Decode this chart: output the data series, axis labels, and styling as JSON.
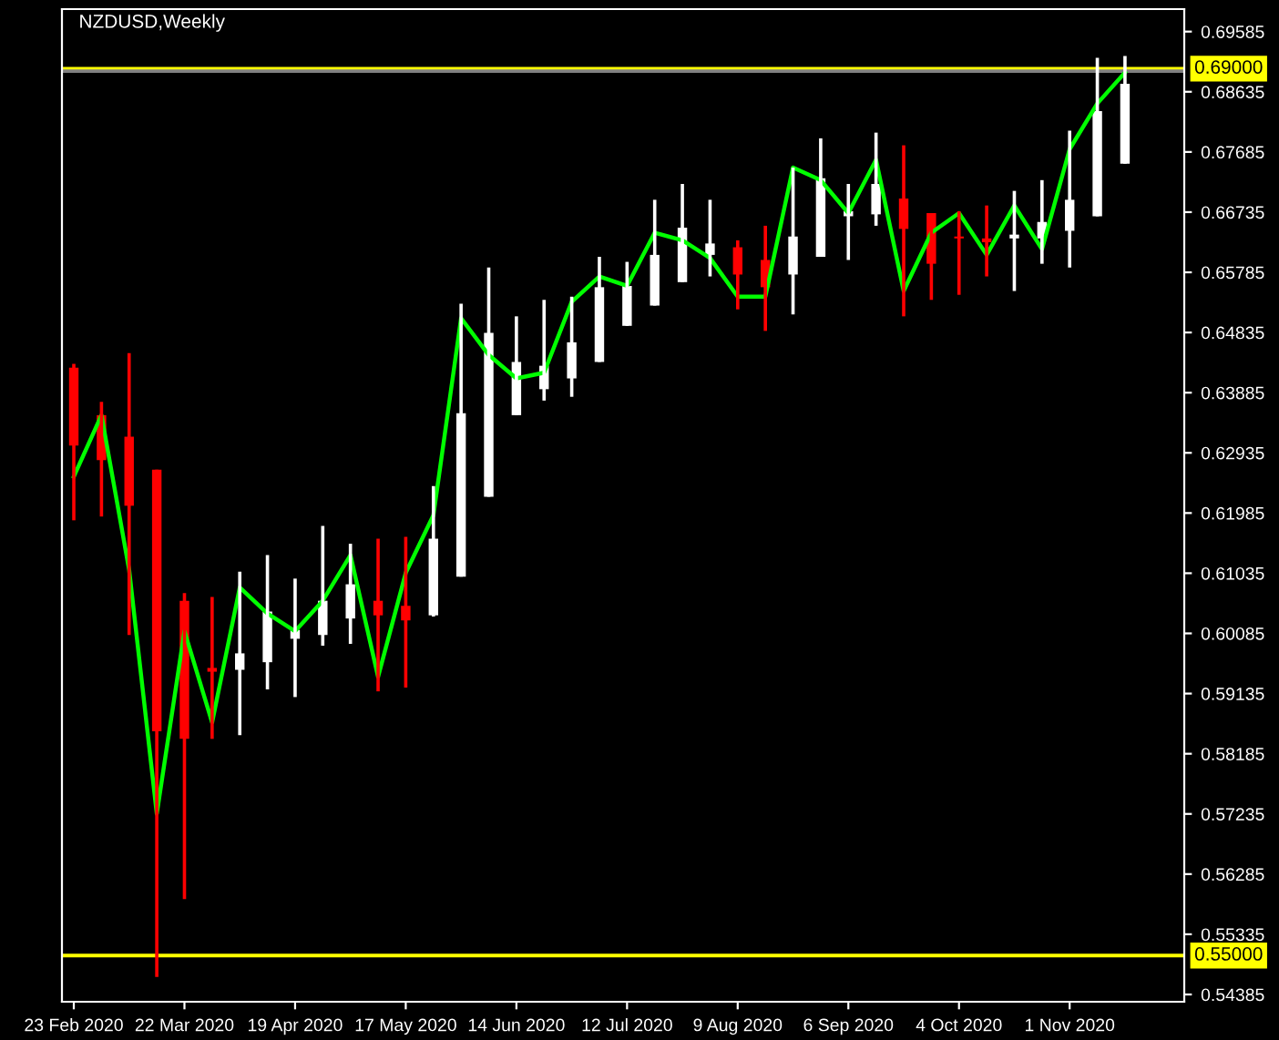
{
  "chart_data": {
    "type": "candlestick",
    "title": "NZDUSD,Weekly",
    "x": [
      "2020-02-23",
      "2020-03-01",
      "2020-03-08",
      "2020-03-15",
      "2020-03-22",
      "2020-03-29",
      "2020-04-05",
      "2020-04-12",
      "2020-04-19",
      "2020-04-26",
      "2020-05-03",
      "2020-05-10",
      "2020-05-17",
      "2020-05-24",
      "2020-05-31",
      "2020-06-07",
      "2020-06-14",
      "2020-06-21",
      "2020-06-28",
      "2020-07-05",
      "2020-07-12",
      "2020-07-19",
      "2020-07-26",
      "2020-08-02",
      "2020-08-09",
      "2020-08-16",
      "2020-08-23",
      "2020-08-30",
      "2020-09-06",
      "2020-09-13",
      "2020-09-20",
      "2020-09-27",
      "2020-10-04",
      "2020-10-11",
      "2020-10-18",
      "2020-10-25",
      "2020-11-01",
      "2020-11-08",
      "2020-11-15"
    ],
    "series": [
      {
        "colors": [
          "#ff0000",
          "#ff0000",
          "#ff0000",
          "#ff0000",
          "#ff0000",
          "#ff0000",
          "#ffffff",
          "#ffffff",
          "#ffffff",
          "#ffffff",
          "#ffffff",
          "#ff0000",
          "#ff0000",
          "#ffffff",
          "#ffffff",
          "#ffffff",
          "#ffffff",
          "#ffffff",
          "#ffffff",
          "#ffffff",
          "#ffffff",
          "#ffffff",
          "#ffffff",
          "#ffffff",
          "#ff0000",
          "#ff0000",
          "#ffffff",
          "#ffffff",
          "#ffffff",
          "#ffffff",
          "#ff0000",
          "#ff0000",
          "#ff0000",
          "#ff0000",
          "#ffffff",
          "#ffffff",
          "#ffffff",
          "#ffffff",
          "#ffffff"
        ],
        "ohlc": [
          [
            0.6428,
            0.6434,
            0.6187,
            0.6305
          ],
          [
            0.6353,
            0.6374,
            0.6193,
            0.6282
          ],
          [
            0.6319,
            0.6451,
            0.6006,
            0.621
          ],
          [
            0.6267,
            0.6267,
            0.5466,
            0.5854
          ],
          [
            0.606,
            0.6072,
            0.5589,
            0.5842
          ],
          [
            0.5954,
            0.6066,
            0.5842,
            0.5948
          ],
          [
            0.5951,
            0.6106,
            0.5848,
            0.5977
          ],
          [
            0.5963,
            0.6132,
            0.592,
            0.6043
          ],
          [
            0.6,
            0.6095,
            0.5908,
            0.6014
          ],
          [
            0.6006,
            0.6178,
            0.5989,
            0.606
          ],
          [
            0.6032,
            0.615,
            0.5992,
            0.6086
          ],
          [
            0.606,
            0.6158,
            0.5917,
            0.6037
          ],
          [
            0.6052,
            0.6161,
            0.5923,
            0.6029
          ],
          [
            0.6037,
            0.6241,
            0.6035,
            0.6158
          ],
          [
            0.6098,
            0.6529,
            0.6098,
            0.6356
          ],
          [
            0.6224,
            0.6586,
            0.6224,
            0.6483
          ],
          [
            0.6353,
            0.6509,
            0.6353,
            0.6437
          ],
          [
            0.6394,
            0.6535,
            0.6376,
            0.6431
          ],
          [
            0.6411,
            0.654,
            0.6382,
            0.6468
          ],
          [
            0.6437,
            0.6603,
            0.6437,
            0.6555
          ],
          [
            0.6494,
            0.6595,
            0.6494,
            0.6557
          ],
          [
            0.6526,
            0.6693,
            0.6526,
            0.6606
          ],
          [
            0.6563,
            0.6718,
            0.6563,
            0.6649
          ],
          [
            0.6606,
            0.6693,
            0.6572,
            0.6624
          ],
          [
            0.6618,
            0.6629,
            0.652,
            0.6575
          ],
          [
            0.6598,
            0.6652,
            0.6486,
            0.6555
          ],
          [
            0.6575,
            0.6744,
            0.6512,
            0.6635
          ],
          [
            0.6603,
            0.679,
            0.6603,
            0.6727
          ],
          [
            0.6667,
            0.6718,
            0.6598,
            0.6675
          ],
          [
            0.667,
            0.6799,
            0.6652,
            0.6718
          ],
          [
            0.6695,
            0.6779,
            0.6509,
            0.6647
          ],
          [
            0.6672,
            0.6672,
            0.6535,
            0.6592
          ],
          [
            0.6635,
            0.6675,
            0.6543,
            0.6632
          ],
          [
            0.6632,
            0.6684,
            0.6572,
            0.6626
          ],
          [
            0.6632,
            0.6707,
            0.6549,
            0.6638
          ],
          [
            0.6632,
            0.6724,
            0.6592,
            0.6658
          ],
          [
            0.6644,
            0.6802,
            0.6586,
            0.6693
          ],
          [
            0.6667,
            0.6917,
            0.6667,
            0.6833
          ],
          [
            0.675,
            0.692,
            0.675,
            0.6876
          ]
        ]
      },
      {
        "type": "line",
        "color": "#00ff00",
        "values": [
          0.6256,
          0.6353,
          0.6109,
          0.5724,
          0.6012,
          0.5868,
          0.6081,
          0.604,
          0.6012,
          0.606,
          0.6132,
          0.594,
          0.6104,
          0.6195,
          0.6506,
          0.6448,
          0.6411,
          0.642,
          0.6532,
          0.6572,
          0.6557,
          0.6641,
          0.6629,
          0.6601,
          0.654,
          0.654,
          0.6744,
          0.6724,
          0.6672,
          0.6756,
          0.6549,
          0.6641,
          0.6672,
          0.6606,
          0.6684,
          0.6615,
          0.6773,
          0.6845,
          0.6894
        ]
      }
    ],
    "xlim": [
      "2020-02-20",
      "2020-11-30"
    ],
    "xticks": [
      {
        "value": "2020-02-23",
        "label": "23 Feb 2020"
      },
      {
        "value": "2020-03-22",
        "label": "22 Mar 2020"
      },
      {
        "value": "2020-04-19",
        "label": "19 Apr 2020"
      },
      {
        "value": "2020-05-17",
        "label": "17 May 2020"
      },
      {
        "value": "2020-06-14",
        "label": "14 Jun 2020"
      },
      {
        "value": "2020-07-12",
        "label": "12 Jul 2020"
      },
      {
        "value": "2020-08-09",
        "label": "9 Aug 2020"
      },
      {
        "value": "2020-09-06",
        "label": "6 Sep 2020"
      },
      {
        "value": "2020-10-04",
        "label": "4 Oct 2020"
      },
      {
        "value": "2020-11-01",
        "label": "1 Nov 2020"
      }
    ],
    "ylim": [
      0.5427,
      0.6994
    ],
    "yticks": [
      0.69585,
      0.68635,
      0.67685,
      0.66735,
      0.65785,
      0.64835,
      0.63885,
      0.62935,
      0.61985,
      0.61035,
      0.60085,
      0.59135,
      0.58185,
      0.57235,
      0.56285,
      0.55335,
      0.54385
    ],
    "ref_lines": [
      {
        "axis": "y",
        "value": 0.69,
        "label": "0.69000",
        "color": "#ffff00"
      },
      {
        "axis": "y",
        "value": 0.6896,
        "color": "#808080"
      },
      {
        "axis": "y",
        "value": 0.55,
        "label": "0.55000",
        "color": "#ffff00"
      }
    ],
    "grid": false
  }
}
